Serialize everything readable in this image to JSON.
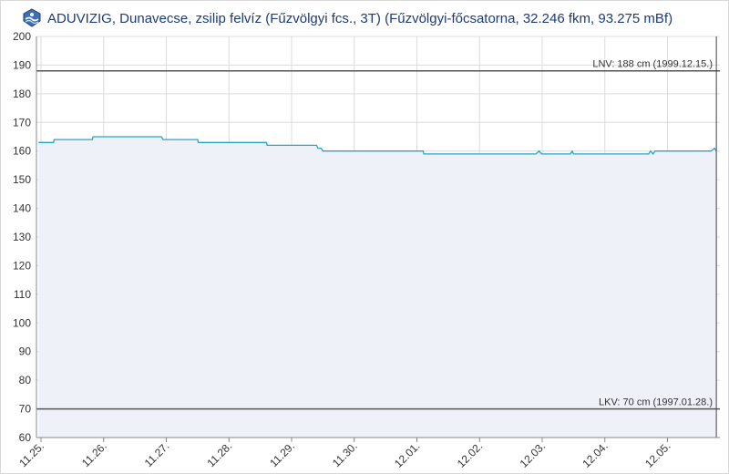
{
  "header": {
    "title": "ADUVIZIG, Dunavecse, zsilip felvíz (Fűzvölgyi fcs., 3T) (Fűzvölgyi-főcsatorna, 32.246 fkm, 93.275 mBf)",
    "logo_icon": "aduvizig-logo-icon"
  },
  "colors": {
    "series": "#29a3c9",
    "area_fill": "#eef1f7",
    "reference_lines": "#555555",
    "grid": "#dcdcdc",
    "title": "#1d3b78"
  },
  "chart_data": {
    "type": "area",
    "title": "ADUVIZIG, Dunavecse, zsilip felvíz (Fűzvölgyi fcs., 3T) (Fűzvölgyi-főcsatorna, 32.246 fkm, 93.275 mBf)",
    "xlabel": "",
    "ylabel": "",
    "ylim": [
      60,
      200
    ],
    "yticks": [
      60,
      70,
      80,
      90,
      100,
      110,
      120,
      130,
      140,
      150,
      160,
      170,
      180,
      190,
      200
    ],
    "xticks": [
      "11.25.",
      "11.26.",
      "11.27.",
      "11.28.",
      "11.29.",
      "11.30.",
      "12.01.",
      "12.02.",
      "12.03.",
      "12.04.",
      "12.05."
    ],
    "xrange_days": [
      -0.04,
      10.78
    ],
    "grid": true,
    "series": [
      {
        "x": [
          -0.04,
          0.2,
          0.21,
          0.82,
          0.83,
          1.92,
          1.95,
          1.99,
          2.5,
          2.51,
          3.0,
          3.02,
          3.6,
          3.61,
          4.4,
          4.42,
          4.47,
          4.5,
          6.1,
          6.11,
          7.9,
          7.95,
          7.99,
          8.45,
          8.48,
          8.5,
          8.55,
          9.7,
          9.73,
          9.77,
          9.8,
          10.7,
          10.75,
          10.78
        ],
        "y": [
          163,
          163,
          164,
          164,
          165,
          165,
          164,
          164,
          164,
          163,
          163,
          163,
          163,
          162,
          162,
          161,
          161,
          160,
          160,
          159,
          159,
          160,
          159,
          159,
          160,
          159,
          159,
          159,
          160,
          159,
          160,
          160,
          161,
          160
        ]
      }
    ],
    "reference_lines": [
      {
        "value": 188,
        "label": "LNV: 188 cm (1999.12.15.)"
      },
      {
        "value": 70,
        "label": "LKV: 70 cm (1997.01.28.)"
      }
    ]
  }
}
